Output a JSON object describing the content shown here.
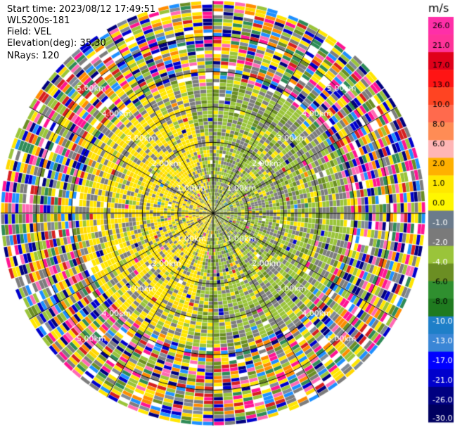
{
  "header": {
    "start_time": "Start time: 2023/08/12 17:49:51",
    "instrument": "WLS200s-181",
    "field": "Field: VEL",
    "elevation": "Elevation(deg): 35.30",
    "nrays": "NRays: 120"
  },
  "chart_data": {
    "type": "heatmap",
    "projection": "polar",
    "field": "VEL",
    "units": "m/s",
    "n_rays": 120,
    "elevation_deg": 35.3,
    "range_rings_km": [
      1.0,
      2.0,
      3.0,
      4.0,
      5.0
    ],
    "ring_label_text": [
      "1.00km",
      "2.00km",
      "3.00km",
      "4.00km",
      "5.00km"
    ],
    "max_range_km": 6.0,
    "colorbar": {
      "label": "m/s",
      "tick_labels": [
        "26.0",
        "21.0",
        "17.0",
        "13.0",
        "10.0",
        "8.0",
        "6.0",
        "2.0",
        "1.0",
        "0.0",
        "-1.0",
        "-2.0",
        "-4.0",
        "-6.0",
        "-8.0",
        "-10.0",
        "-13.0",
        "-17.0",
        "-21.0",
        "-26.0",
        "-30.0"
      ],
      "colors": [
        "#ff2fa8",
        "#ff3399",
        "#e0001a",
        "#ff1414",
        "#ff4422",
        "#ff6a4d",
        "#ff8c55",
        "#ffb6b6",
        "#ffb000",
        "#ffe800",
        "#fff700",
        "#6b7b8b",
        "#7a7a7a",
        "#9ac43a",
        "#6b8e23",
        "#2f8f2f",
        "#1f7a1f",
        "#1e7fc8",
        "#3a86d6",
        "#0000ff",
        "#0000cc",
        "#000080",
        "#000060"
      ]
    }
  }
}
